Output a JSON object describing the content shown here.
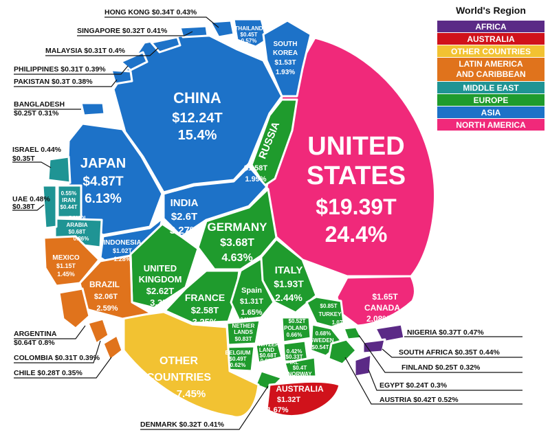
{
  "chart_data": {
    "type": "voronoi-treemap",
    "title": "",
    "unit": "T",
    "legend": {
      "title": "World's Region",
      "placement": "top-right",
      "items": [
        {
          "region": "africa",
          "label": "AFRICA",
          "color": "#5b2a86"
        },
        {
          "region": "australia",
          "label": "AUSTRALIA",
          "color": "#d0121b"
        },
        {
          "region": "other",
          "label": "OTHER COUNTRIES",
          "color": "#f2c232"
        },
        {
          "region": "latam",
          "label": "LATIN AMERICA AND CARIBBEAN",
          "color": "#e0731c"
        },
        {
          "region": "mideast",
          "label": "MIDDLE EAST",
          "color": "#1f9494"
        },
        {
          "region": "europe",
          "label": "EUROPE",
          "color": "#1f9b2d"
        },
        {
          "region": "asia",
          "label": "ASIA",
          "color": "#1d72c8"
        },
        {
          "region": "namerica",
          "label": "NORTH AMERICA",
          "color": "#f0297a"
        }
      ]
    },
    "countries": [
      {
        "key": "usa",
        "name": "UNITED STATES",
        "region": "namerica",
        "value": "$19.39T",
        "share": "24.4%"
      },
      {
        "key": "china",
        "name": "CHINA",
        "region": "asia",
        "value": "$12.24T",
        "share": "15.4%"
      },
      {
        "key": "japan",
        "name": "JAPAN",
        "region": "asia",
        "value": "$4.87T",
        "share": "6.13%"
      },
      {
        "key": "germany",
        "name": "GERMANY",
        "region": "europe",
        "value": "$3.68T",
        "share": "4.63%"
      },
      {
        "key": "india",
        "name": "INDIA",
        "region": "asia",
        "value": "$2.6T",
        "share": "3.27%"
      },
      {
        "key": "uk",
        "name": "UNITED KINGDOM",
        "region": "europe",
        "value": "$2.62T",
        "share": "3.3%"
      },
      {
        "key": "france",
        "name": "FRANCE",
        "region": "europe",
        "value": "$2.58T",
        "share": "3.25%"
      },
      {
        "key": "brazil",
        "name": "BRAZIL",
        "region": "latam",
        "value": "$2.06T",
        "share": "2.59%"
      },
      {
        "key": "italy",
        "name": "ITALY",
        "region": "europe",
        "value": "$1.93T",
        "share": "2.44%"
      },
      {
        "key": "canada",
        "name": "CANADA",
        "region": "namerica",
        "value": "$1.65T",
        "share": "2.08%"
      },
      {
        "key": "russia",
        "name": "RUSSIA",
        "region": "europe",
        "value": "$1.58T",
        "share": "1.99%"
      },
      {
        "key": "korea",
        "name": "SOUTH KOREA",
        "region": "asia",
        "value": "$1.53T",
        "share": "1.93%"
      },
      {
        "key": "australia",
        "name": "AUSTRALIA",
        "region": "australia",
        "value": "$1.32T",
        "share": "1.67%"
      },
      {
        "key": "spain",
        "name": "Spain",
        "region": "europe",
        "value": "$1.31T",
        "share": "1.65%"
      },
      {
        "key": "mexico",
        "name": "MEXICO",
        "region": "latam",
        "value": "$1.15T",
        "share": "1.45%"
      },
      {
        "key": "indonesia",
        "name": "INDONESIA",
        "region": "asia",
        "value": "$1.02T",
        "share": "1.28%"
      },
      {
        "key": "turkey",
        "name": "TURKEY",
        "region": "europe",
        "value": "$0.85T",
        "share": "1.07%"
      },
      {
        "key": "netherlands",
        "name": "NETHER LANDS",
        "region": "europe",
        "value": "$0.83T",
        "share": "1.04%"
      },
      {
        "key": "saudi",
        "name": "SAUDI ARABIA",
        "region": "mideast",
        "value": "$0.68T",
        "share": "0.86%"
      },
      {
        "key": "switzerland",
        "name": "SWITZER LAND",
        "region": "europe",
        "value": "$0.68T",
        "share": "0.85%"
      },
      {
        "key": "argentina",
        "name": "ARGENTINA",
        "region": "latam",
        "value": "$0.64T",
        "share": "0.8%"
      },
      {
        "key": "sweden",
        "name": "SWEDEN",
        "region": "europe",
        "value": "$0.54T",
        "share": "0.68%"
      },
      {
        "key": "poland",
        "name": "POLAND",
        "region": "europe",
        "value": "$0.52T",
        "share": "0.66%"
      },
      {
        "key": "belgium",
        "name": "BELGIUM",
        "region": "europe",
        "value": "$0.49T",
        "share": "0.62%"
      },
      {
        "key": "thailand",
        "name": "THAILAND",
        "region": "asia",
        "value": "$0.45T",
        "share": "0.57%"
      },
      {
        "key": "iran",
        "name": "IRAN",
        "region": "mideast",
        "value": "$0.44T",
        "share": "0.55%"
      },
      {
        "key": "austria",
        "name": "AUSTRIA",
        "region": "europe",
        "value": "$0.42T",
        "share": "0.52%"
      },
      {
        "key": "norway",
        "name": "NORWAY",
        "region": "europe",
        "value": "$0.4T",
        "share": "0.5%"
      },
      {
        "key": "uae",
        "name": "UAE",
        "region": "mideast",
        "value": "$0.38T",
        "share": "0.48%"
      },
      {
        "key": "nigeria",
        "name": "NIGERIA",
        "region": "africa",
        "value": "$0.37T",
        "share": "0.47%"
      },
      {
        "key": "israel",
        "name": "ISRAEL",
        "region": "mideast",
        "value": "$0.35T",
        "share": "0.44%"
      },
      {
        "key": "southafrica",
        "name": "SOUTH AFRICA",
        "region": "africa",
        "value": "$0.35T",
        "share": "0.44%"
      },
      {
        "key": "hongkong",
        "name": "HONG KONG",
        "region": "asia",
        "value": "$0.34T",
        "share": "0.43%"
      },
      {
        "key": "ireland",
        "name": "IRL",
        "region": "europe",
        "value": "$0.33T",
        "share": "0.42%"
      },
      {
        "key": "denmark",
        "name": "DENMARK",
        "region": "europe",
        "value": "$0.32T",
        "share": "0.41%"
      },
      {
        "key": "singapore",
        "name": "SINGAPORE",
        "region": "asia",
        "value": "$0.32T",
        "share": "0.41%"
      },
      {
        "key": "malaysia",
        "name": "MALAYSIA",
        "region": "asia",
        "value": "$0.31T",
        "share": "0.4%"
      },
      {
        "key": "philippines",
        "name": "PHILIPPINES",
        "region": "asia",
        "value": "$0.31T",
        "share": "0.39%"
      },
      {
        "key": "colombia",
        "name": "COLOMBIA",
        "region": "latam",
        "value": "$0.31T",
        "share": "0.39%"
      },
      {
        "key": "pakistan",
        "name": "PAKISTAN",
        "region": "asia",
        "value": "$0.3T",
        "share": "0.38%"
      },
      {
        "key": "chile",
        "name": "CHILE",
        "region": "latam",
        "value": "$0.28T",
        "share": "0.35%"
      },
      {
        "key": "finland",
        "name": "FINLAND",
        "region": "europe",
        "value": "$0.25T",
        "share": "0.32%"
      },
      {
        "key": "bangladesh",
        "name": "BANGLADESH",
        "region": "asia",
        "value": "$0.25T",
        "share": "0.31%"
      },
      {
        "key": "egypt",
        "name": "EGYPT",
        "region": "africa",
        "value": "$0.24T",
        "share": "0.3%"
      },
      {
        "key": "other",
        "name": "OTHER COUNTRIES",
        "region": "other",
        "value": "",
        "share": "7.45%"
      }
    ]
  }
}
